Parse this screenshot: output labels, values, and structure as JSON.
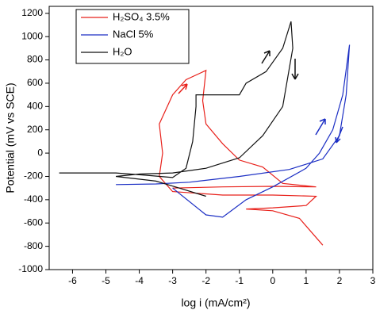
{
  "chart_data": {
    "type": "line",
    "x_label": "log i (mA/cm²)",
    "y_label": "Potential (mV vs SCE)",
    "xlim": [
      -6.7,
      3
    ],
    "ylim": [
      -1000,
      1260
    ],
    "xticks": [
      -6,
      -5,
      -4,
      -3,
      -2,
      -1,
      0,
      1,
      2,
      3
    ],
    "yticks": [
      -1000,
      -800,
      -600,
      -400,
      -200,
      0,
      200,
      400,
      600,
      800,
      1000,
      1200
    ],
    "legend": "top-left",
    "series": [
      {
        "name": "H₂SO₄ 3.5%",
        "color": "#e8201a",
        "x": [
          1.5,
          0.8,
          0,
          -0.8,
          0,
          1.0,
          1.3,
          0,
          -1.5,
          -3.0,
          -3.4,
          -3.3,
          -3.4,
          -3.0,
          -2.6,
          -2.0,
          -2.1,
          -2.0,
          -1.5,
          -1.0,
          -0.3,
          0.3,
          1.3,
          0,
          -1.5,
          -3.0
        ],
        "values": [
          -790,
          -560,
          -495,
          -480,
          -470,
          -450,
          -370,
          -360,
          -360,
          -330,
          -200,
          0,
          250,
          500,
          630,
          710,
          450,
          250,
          80,
          -60,
          -120,
          -260,
          -290,
          -285,
          -290,
          -300
        ]
      },
      {
        "name": "NaCl 5%",
        "color": "#1c2fc4",
        "x": [
          -4.7,
          -3.5,
          -2.5,
          -1,
          0.5,
          1.5,
          2.0,
          2.2,
          2.3,
          2.1,
          1.8,
          1.4,
          1.0,
          0,
          -0.8,
          -1.5,
          -2.0,
          -3.0
        ],
        "values": [
          -270,
          -265,
          -250,
          -200,
          -140,
          -50,
          150,
          500,
          930,
          500,
          200,
          0,
          -130,
          -290,
          -400,
          -550,
          -530,
          -300
        ]
      },
      {
        "name": "H₂O",
        "color": "#111111",
        "x": [
          -6.4,
          -4.7,
          -3.8,
          -3.0,
          -2.6,
          -2.4,
          -2.3,
          -2.3,
          -1.0,
          -0.8,
          -0.2,
          0.3,
          0.55,
          0.6,
          0.3,
          -0.3,
          -1.0,
          -2.0,
          -3.0,
          -4.0,
          -4.7,
          -3.5,
          -2.8,
          -2.0
        ],
        "values": [
          -170,
          -170,
          -190,
          -210,
          -130,
          100,
          400,
          500,
          500,
          600,
          700,
          900,
          1130,
          900,
          400,
          150,
          -40,
          -130,
          -170,
          -180,
          -200,
          -240,
          -300,
          -370
        ]
      }
    ]
  }
}
